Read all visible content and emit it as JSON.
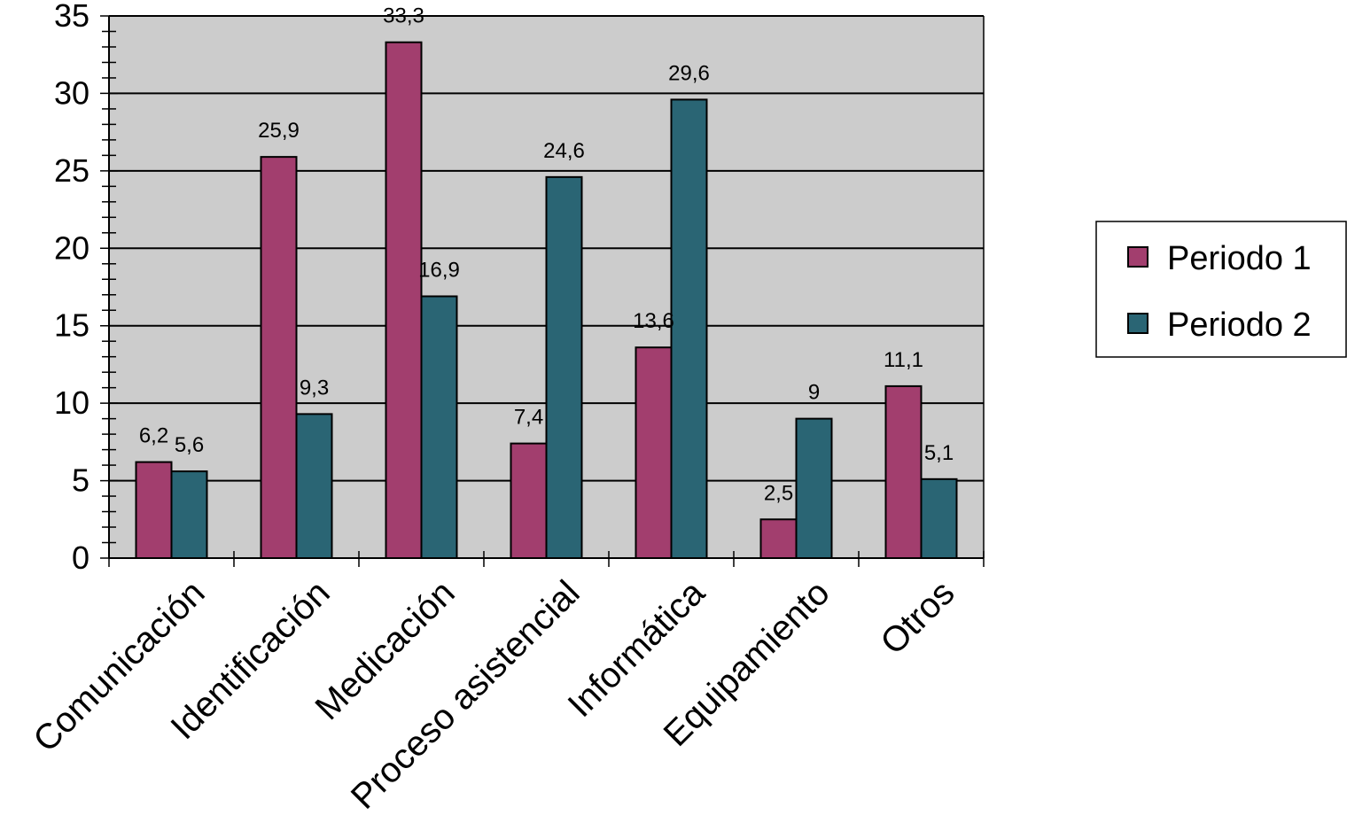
{
  "chart_data": {
    "type": "bar",
    "categories": [
      "Comunicación",
      "Identificación",
      "Medicación",
      "Proceso asistencial",
      "Informática",
      "Equipamiento",
      "Otros"
    ],
    "series": [
      {
        "name": "Periodo 1",
        "color": "#A23E6E",
        "values": [
          6.2,
          25.9,
          33.3,
          7.4,
          13.6,
          2.5,
          11.1
        ],
        "labels": [
          "6,2",
          "25,9",
          "33,3",
          "7,4",
          "13,6",
          "2,5",
          "11,1"
        ]
      },
      {
        "name": "Periodo 2",
        "color": "#2A6574",
        "values": [
          5.6,
          9.3,
          16.9,
          24.6,
          29.6,
          9.0,
          5.1
        ],
        "labels": [
          "5,6",
          "9,3",
          "16,9",
          "24,6",
          "29,6",
          "9",
          "5,1"
        ]
      }
    ],
    "ylim": [
      0,
      35
    ],
    "yticks": [
      0,
      5,
      10,
      15,
      20,
      25,
      30,
      35
    ],
    "ytick_labels": [
      "0",
      "5",
      "10",
      "15",
      "20",
      "25",
      "30",
      "35"
    ],
    "grid": true,
    "plot_background": "#CCCCCC",
    "legend_position": "right",
    "title": "",
    "xlabel": "",
    "ylabel": ""
  }
}
